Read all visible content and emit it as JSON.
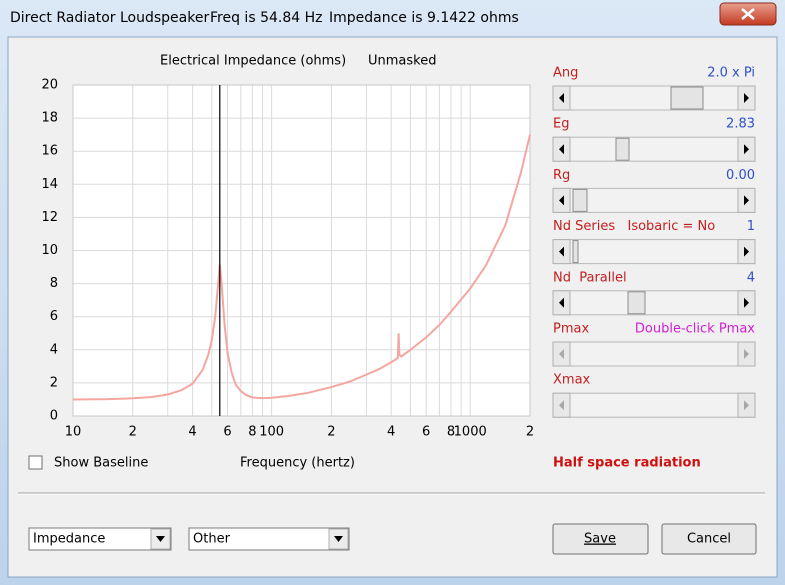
{
  "window": {
    "title": "Direct Radiator Loudspeaker",
    "freq": "Freq is 54.84 Hz",
    "impedance": "Impedance is 9.1422 ohms"
  },
  "chart_data": {
    "type": "line",
    "title": "Electrical Impedance (ohms)",
    "subtitle": "Unmasked",
    "x_label": "Frequency (hertz)",
    "x": [
      10,
      15,
      20,
      25,
      30,
      35,
      40,
      45,
      48,
      50,
      52,
      54,
      54.84,
      56,
      58,
      60,
      63,
      66,
      70,
      75,
      80,
      90,
      100,
      120,
      150,
      200,
      250,
      300,
      350,
      400,
      432,
      436,
      440,
      450,
      500,
      600,
      700,
      800,
      1000,
      1200,
      1500,
      1800,
      2000
    ],
    "values": [
      1.0,
      1.02,
      1.07,
      1.15,
      1.3,
      1.55,
      1.95,
      2.8,
      3.7,
      4.6,
      6.0,
      8.2,
      9.14,
      8.0,
      5.5,
      3.8,
      2.6,
      1.9,
      1.5,
      1.25,
      1.12,
      1.08,
      1.1,
      1.2,
      1.38,
      1.75,
      2.1,
      2.5,
      2.85,
      3.25,
      3.5,
      5.0,
      3.7,
      3.6,
      4.0,
      4.75,
      5.5,
      6.3,
      7.7,
      9.1,
      11.5,
      14.7,
      17.0
    ],
    "color": "#f4a6a0",
    "xlog": true,
    "xlim": [
      10,
      2000
    ],
    "ylim": [
      0,
      20
    ],
    "xticks": [
      {
        "value": 10,
        "label": "10"
      },
      {
        "value": 20,
        "label": "2"
      },
      {
        "value": 40,
        "label": "4"
      },
      {
        "value": 60,
        "label": "6"
      },
      {
        "value": 80,
        "label": "8"
      },
      {
        "value": 100,
        "label": "100"
      },
      {
        "value": 200,
        "label": "2"
      },
      {
        "value": 400,
        "label": "4"
      },
      {
        "value": 600,
        "label": "6"
      },
      {
        "value": 800,
        "label": "8"
      },
      {
        "value": 1000,
        "label": "1000"
      },
      {
        "value": 2000,
        "label": "2"
      }
    ],
    "xminor": [
      30,
      50,
      70,
      90,
      300,
      500,
      700,
      900
    ],
    "yticks": [
      0,
      2,
      4,
      6,
      8,
      10,
      12,
      14,
      16,
      18,
      20
    ],
    "grid": true,
    "cursor_x": 54.84,
    "cursor_color": "#000000"
  },
  "controls": {
    "show_baseline": "Show Baseline",
    "note": "Half space radiation",
    "sliders": [
      {
        "label": "Ang",
        "value": "2.0 x Pi"
      },
      {
        "label": "Eg",
        "value": "2.83"
      },
      {
        "label": "Rg",
        "value": "0.00"
      },
      {
        "label": "Nd Series   Isobaric = No",
        "value": "1"
      },
      {
        "label": "Nd  Parallel",
        "value": "4"
      },
      {
        "label": "Pmax",
        "value": "Double-click Pmax",
        "disabled": true
      },
      {
        "label": "Xmax",
        "disabled": true
      }
    ],
    "dropdowns": [
      "Impedance",
      "Other"
    ],
    "buttons": [
      "Save",
      "Cancel"
    ]
  }
}
